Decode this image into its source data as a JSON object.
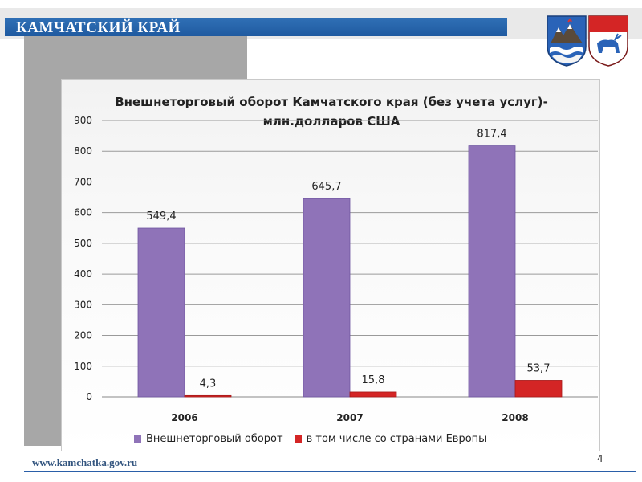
{
  "header": {
    "title": "КАМЧАТСКИЙ КРАЙ"
  },
  "colors": {
    "header_blue": "#1f5aa0",
    "series_1": "#8f73b8",
    "series_2": "#d42525"
  },
  "emblems": [
    {
      "name": "kamchatka-coat-of-arms-icon"
    },
    {
      "name": "koryak-coat-of-arms-icon"
    }
  ],
  "chart_data": {
    "type": "bar",
    "title": "Внешнеторговый оборот Камчатского края (без учета услуг)- млн.долларов США",
    "title_line1": "Внешнеторговый оборот Камчатского края (без учета услуг)-",
    "title_line2": "млн.долларов США",
    "categories": [
      "2006",
      "2007",
      "2008"
    ],
    "series": [
      {
        "name": "Внешнеторговый оборот",
        "values": [
          549.4,
          645.7,
          817.4
        ],
        "labels": [
          "549,4",
          "645,7",
          "817,4"
        ],
        "color": "#8f73b8"
      },
      {
        "name": "в том числе со странами Европы",
        "values": [
          4.3,
          15.8,
          53.7
        ],
        "labels": [
          "4,3",
          "15,8",
          "53,7"
        ],
        "color": "#d42525"
      }
    ],
    "ylim": [
      0,
      900
    ],
    "yticks": [
      "0",
      "100",
      "200",
      "300",
      "400",
      "500",
      "600",
      "700",
      "800",
      "900"
    ],
    "grid": true,
    "legend_position": "bottom"
  },
  "footer": {
    "url": "www.kamchatka.gov.ru",
    "page_number": "4"
  }
}
